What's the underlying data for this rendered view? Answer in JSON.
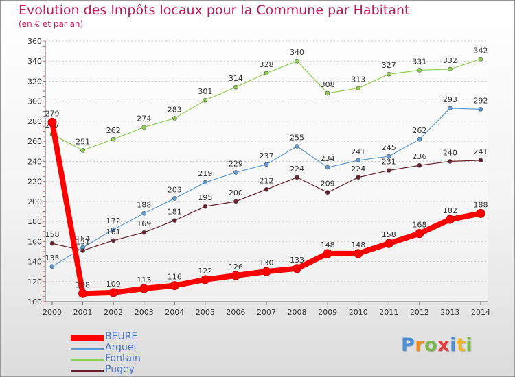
{
  "chart_data": {
    "type": "line",
    "title": "Evolution des Impôts locaux pour la Commune par Habitant",
    "subtitle": "(en € et par an)",
    "categories": [
      "2000",
      "2001",
      "2002",
      "2003",
      "2004",
      "2005",
      "2006",
      "2007",
      "2008",
      "2009",
      "2010",
      "2011",
      "2012",
      "2013",
      "2014"
    ],
    "ylim": [
      100,
      360
    ],
    "yticks": [
      100,
      120,
      140,
      160,
      180,
      200,
      220,
      240,
      260,
      280,
      300,
      320,
      340,
      360
    ],
    "grid": "horizontal dashed",
    "legend_position": "bottom-left",
    "series": [
      {
        "name": "BEURE",
        "color": "#ff0000",
        "values": [
          279,
          108,
          109,
          113,
          116,
          122,
          126,
          130,
          133,
          148,
          148,
          158,
          168,
          182,
          188
        ]
      },
      {
        "name": "Arguel",
        "color": "#5b9bd5",
        "values": [
          135,
          154,
          172,
          188,
          203,
          219,
          229,
          237,
          255,
          234,
          241,
          245,
          262,
          293,
          292
        ]
      },
      {
        "name": "Fontain",
        "color": "#8fd14f",
        "values": [
          267,
          251,
          262,
          274,
          283,
          301,
          314,
          328,
          340,
          308,
          313,
          327,
          331,
          332,
          342
        ]
      },
      {
        "name": "Pugey",
        "color": "#6b1f2a",
        "values": [
          158,
          151,
          161,
          169,
          181,
          195,
          200,
          212,
          224,
          209,
          224,
          231,
          236,
          240,
          241
        ]
      }
    ]
  },
  "logo": {
    "text": "Proxiti",
    "letters": [
      {
        "char": "P",
        "color": "#4a90d9"
      },
      {
        "char": "r",
        "color": "#f08c1e"
      },
      {
        "char": "o",
        "color": "#7ab648"
      },
      {
        "char": "x",
        "color": "#e23b3b"
      },
      {
        "char": "i",
        "color": "#4a90d9"
      },
      {
        "char": "t",
        "color": "#f0b41e"
      },
      {
        "char": "i",
        "color": "#7ab648"
      }
    ]
  }
}
